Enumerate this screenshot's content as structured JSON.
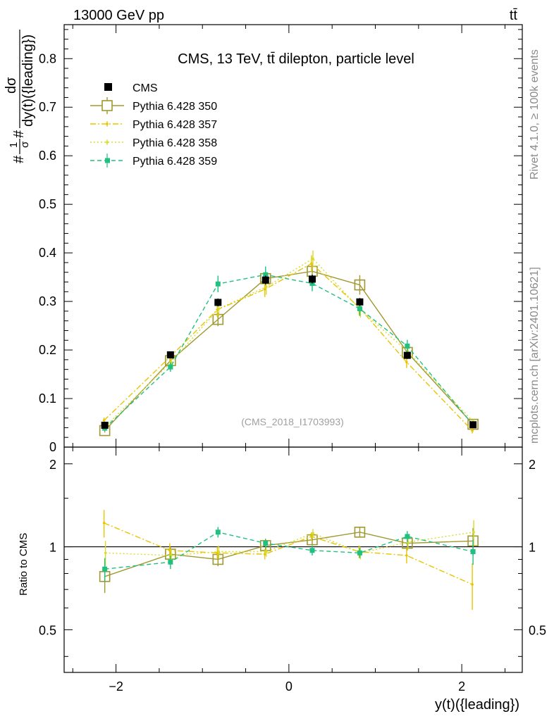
{
  "header": {
    "left": "13000 GeV pp",
    "right": "tt̄"
  },
  "side_labels": {
    "rivet": "Rivet 4.1.0, ≥ 100k events",
    "mcplots": "mcplots.cern.ch [arXiv:2401.10621]"
  },
  "chart_data": {
    "type": "scatter",
    "title": "CMS, 13 TeV, tt̄ dilepton, particle level",
    "watermark": "(CMS_2018_I1703993)",
    "xlabel": "y(t)({leading})",
    "ylabel": "#1/σ# dσ/dy(t)({leading})",
    "ylabel_num": "dσ",
    "ylabel_den": "dy(t)({leading})",
    "ylabel_frac_num": "1",
    "ylabel_frac_den": "σ",
    "ylabel_hash": "#",
    "ratio_ylabel": "Ratio to CMS",
    "xlim": [
      -2.6,
      2.7
    ],
    "ylim": [
      0,
      0.87
    ],
    "ratio_ylim": [
      0.35,
      2.3
    ],
    "x_ticks": [
      "−2",
      "0",
      "2"
    ],
    "y_ticks": [
      "0.1",
      "0.2",
      "0.3",
      "0.4",
      "0.5",
      "0.6",
      "0.7",
      "0.8"
    ],
    "y_zero_label": "0",
    "ratio_ticks": [
      "0.5",
      "1",
      "2"
    ],
    "x": [
      -2.13,
      -1.37,
      -0.82,
      -0.27,
      0.27,
      0.82,
      1.37,
      2.13
    ],
    "series": [
      {
        "name": "CMS",
        "color": "#000000",
        "style": "data",
        "values": [
          0.045,
          0.19,
          0.298,
          0.344,
          0.346,
          0.299,
          0.189,
          0.046
        ],
        "errors": [
          0.004,
          0.007,
          0.008,
          0.009,
          0.009,
          0.008,
          0.007,
          0.004
        ]
      },
      {
        "name": "Pythia 6.428 350",
        "color": "#a09830",
        "style": "open-square-solid",
        "values": [
          0.034,
          0.178,
          0.263,
          0.347,
          0.362,
          0.334,
          0.195,
          0.047
        ],
        "errors": [
          0.004,
          0.01,
          0.014,
          0.015,
          0.016,
          0.02,
          0.014,
          0.005
        ],
        "ratio": [
          0.78,
          0.94,
          0.9,
          1.01,
          1.06,
          1.13,
          1.03,
          1.05
        ],
        "ratio_err": [
          0.1,
          0.06,
          0.05,
          0.04,
          0.04,
          0.05,
          0.06,
          0.12
        ]
      },
      {
        "name": "Pythia 6.428 357",
        "color": "#e8c500",
        "style": "dashdot",
        "values": [
          0.055,
          0.185,
          0.283,
          0.325,
          0.378,
          0.288,
          0.175,
          0.034
        ],
        "errors": [
          0.006,
          0.01,
          0.015,
          0.016,
          0.017,
          0.016,
          0.012,
          0.006
        ],
        "ratio": [
          1.22,
          0.97,
          0.95,
          0.94,
          1.09,
          0.96,
          0.93,
          0.73
        ],
        "ratio_err": [
          0.14,
          0.06,
          0.05,
          0.04,
          0.04,
          0.05,
          0.06,
          0.14
        ]
      },
      {
        "name": "Pythia 6.428 358",
        "color": "#d6dd2a",
        "style": "dotted",
        "values": [
          0.043,
          0.175,
          0.285,
          0.33,
          0.388,
          0.283,
          0.196,
          0.051
        ],
        "errors": [
          0.005,
          0.01,
          0.015,
          0.016,
          0.017,
          0.016,
          0.013,
          0.006
        ],
        "ratio": [
          0.95,
          0.93,
          0.96,
          0.96,
          1.12,
          0.95,
          1.04,
          1.13
        ],
        "ratio_err": [
          0.1,
          0.05,
          0.05,
          0.04,
          0.04,
          0.05,
          0.06,
          0.12
        ]
      },
      {
        "name": "Pythia 6.428 359",
        "color": "#20c080",
        "style": "dashed",
        "values": [
          0.039,
          0.165,
          0.336,
          0.355,
          0.337,
          0.285,
          0.208,
          0.046
        ],
        "errors": [
          0.005,
          0.01,
          0.017,
          0.017,
          0.016,
          0.015,
          0.013,
          0.006
        ],
        "ratio": [
          0.83,
          0.88,
          1.13,
          1.03,
          0.97,
          0.95,
          1.09,
          0.96
        ],
        "ratio_err": [
          0.08,
          0.05,
          0.05,
          0.04,
          0.04,
          0.04,
          0.05,
          0.1
        ]
      }
    ]
  }
}
